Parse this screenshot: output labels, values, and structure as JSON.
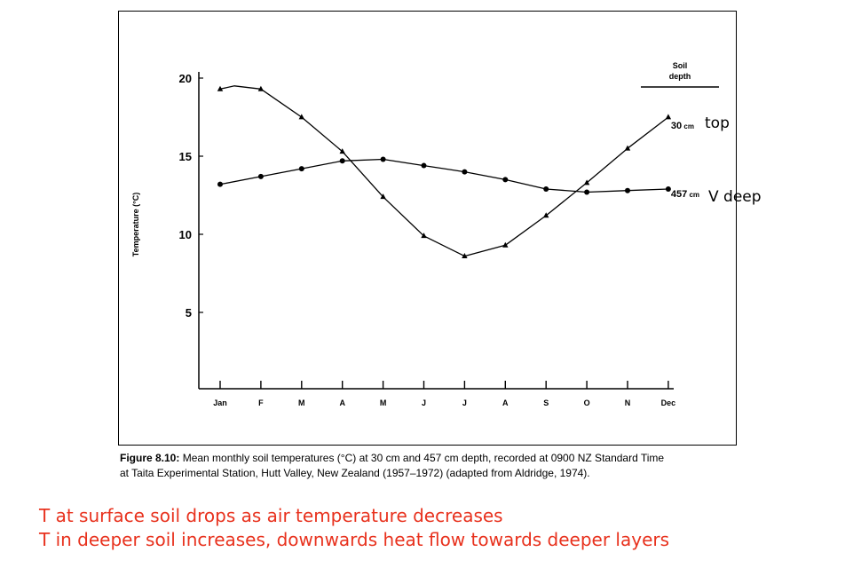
{
  "chart_data": {
    "type": "line",
    "categories": [
      "Jan",
      "F",
      "M",
      "A",
      "M",
      "J",
      "J",
      "A",
      "S",
      "O",
      "N",
      "Dec"
    ],
    "ylabel": "Temperature (°C)",
    "ylim": [
      0,
      20
    ],
    "yticks": [
      "20",
      "15",
      "10",
      "5"
    ],
    "legend_title_line1": "Soil",
    "legend_title_line2": "depth",
    "series": [
      {
        "name": "30 cm",
        "marker": "triangle",
        "values": [
          19.3,
          19.3,
          17.5,
          15.3,
          12.4,
          9.9,
          8.6,
          9.3,
          11.2,
          13.3,
          15.5,
          17.5
        ],
        "extra_point": {
          "x": 0.35,
          "y": 19.5
        }
      },
      {
        "name": "457 cm",
        "marker": "circle",
        "values": [
          13.2,
          13.7,
          14.2,
          14.7,
          14.8,
          14.4,
          14.0,
          13.5,
          12.9,
          12.7,
          12.8,
          12.9
        ]
      }
    ]
  },
  "caption": {
    "figure_label": "Figure 8.10:",
    "line1": "Mean monthly soil temperatures (°C) at 30 cm and 457 cm depth, recorded at 0900 NZ Standard Time",
    "line2": "at Taita Experimental Station, Hutt Valley, New Zealand (1957–1972) (adapted from Aldridge, 1974)."
  },
  "annotations": {
    "top": "top",
    "deep": "V deep"
  },
  "notes": {
    "line1": "T at surface soil drops as air temperature decreases",
    "line2": "T in deeper soil increases, downwards heat flow towards deeper layers"
  },
  "colors": {
    "note_text": "#e8321e",
    "ink": "#000000"
  }
}
